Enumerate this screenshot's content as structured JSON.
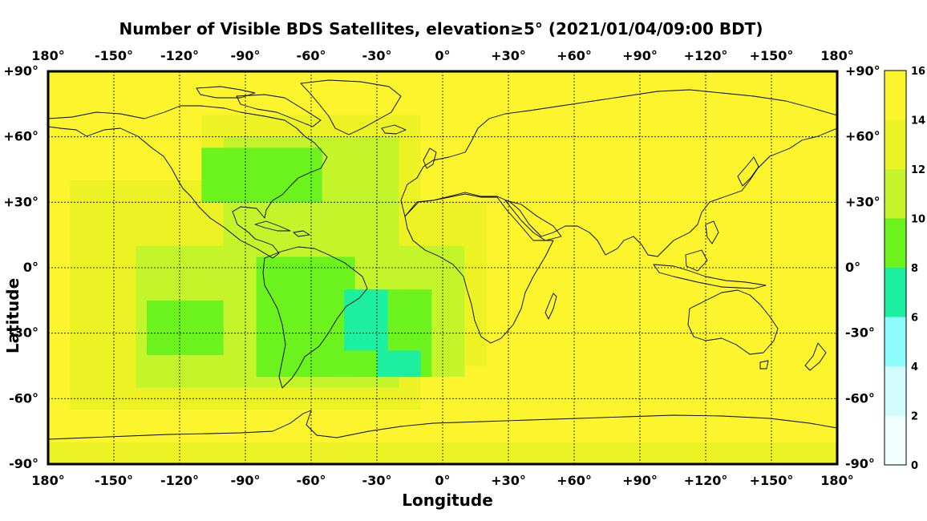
{
  "title": "Number of Visible BDS Satellites, elevation≥5° (2021/01/04/09:00 BDT)",
  "map": {
    "xlabel": "Longitude",
    "ylabel": "Latitude",
    "lon_range": [
      -180,
      180
    ],
    "lat_range": [
      -90,
      90
    ],
    "lon_ticks": [
      {
        "value": -180,
        "label": "180°"
      },
      {
        "value": -150,
        "label": "-150°"
      },
      {
        "value": -120,
        "label": "-120°"
      },
      {
        "value": -90,
        "label": "-90°"
      },
      {
        "value": -60,
        "label": "-60°"
      },
      {
        "value": -30,
        "label": "-30°"
      },
      {
        "value": 0,
        "label": "0°"
      },
      {
        "value": 30,
        "label": "+30°"
      },
      {
        "value": 60,
        "label": "+60°"
      },
      {
        "value": 90,
        "label": "+90°"
      },
      {
        "value": 120,
        "label": "+120°"
      },
      {
        "value": 150,
        "label": "+150°"
      },
      {
        "value": 180,
        "label": "180°"
      }
    ],
    "lat_ticks": [
      {
        "value": 90,
        "label": "+90°"
      },
      {
        "value": 60,
        "label": "+60°"
      },
      {
        "value": 30,
        "label": "+30°"
      },
      {
        "value": 0,
        "label": "0°"
      },
      {
        "value": -30,
        "label": "-30°"
      },
      {
        "value": -60,
        "label": "-60°"
      },
      {
        "value": -90,
        "label": "-90°"
      }
    ],
    "grid": true,
    "grid_style": "dashed"
  },
  "colorbar": {
    "ticks": [
      "0",
      "2",
      "4",
      "6",
      "8",
      "10",
      "12",
      "14",
      "16"
    ],
    "bands": [
      {
        "from": 0,
        "to": 2,
        "color": "#f0ffff"
      },
      {
        "from": 2,
        "to": 4,
        "color": "#d2fcfc"
      },
      {
        "from": 4,
        "to": 6,
        "color": "#8cfcfc"
      },
      {
        "from": 6,
        "to": 8,
        "color": "#1cf0a0"
      },
      {
        "from": 8,
        "to": 10,
        "color": "#6cf21c"
      },
      {
        "from": 10,
        "to": 12,
        "color": "#c4f52a"
      },
      {
        "from": 12,
        "to": 14,
        "color": "#ecf224"
      },
      {
        "from": 14,
        "to": 16,
        "color": "#fcf52e"
      }
    ]
  },
  "chart_data": {
    "type": "heatmap",
    "background_value": 15,
    "regions": [
      {
        "value": 13,
        "lon": [
          -180,
          180
        ],
        "lat": [
          -90,
          -80
        ]
      },
      {
        "value": 13,
        "lon": [
          -170,
          -110
        ],
        "lat": [
          -65,
          40
        ]
      },
      {
        "value": 13,
        "lon": [
          -110,
          -10
        ],
        "lat": [
          -65,
          70
        ]
      },
      {
        "value": 13,
        "lon": [
          -10,
          20
        ],
        "lat": [
          -45,
          30
        ]
      },
      {
        "value": 11,
        "lon": [
          -140,
          -100
        ],
        "lat": [
          -55,
          10
        ]
      },
      {
        "value": 11,
        "lon": [
          -100,
          -20
        ],
        "lat": [
          -55,
          60
        ]
      },
      {
        "value": 11,
        "lon": [
          -20,
          10
        ],
        "lat": [
          -50,
          10
        ]
      },
      {
        "value": 9,
        "lon": [
          -135,
          -100
        ],
        "lat": [
          -40,
          -15
        ]
      },
      {
        "value": 9,
        "lon": [
          -110,
          -55
        ],
        "lat": [
          30,
          55
        ]
      },
      {
        "value": 9,
        "lon": [
          -85,
          -40
        ],
        "lat": [
          -50,
          5
        ]
      },
      {
        "value": 9,
        "lon": [
          -50,
          -5
        ],
        "lat": [
          -50,
          -10
        ]
      },
      {
        "value": 7,
        "lon": [
          -45,
          -25
        ],
        "lat": [
          -38,
          -10
        ]
      },
      {
        "value": 7,
        "lon": [
          -30,
          -10
        ],
        "lat": [
          -50,
          -38
        ]
      }
    ]
  }
}
